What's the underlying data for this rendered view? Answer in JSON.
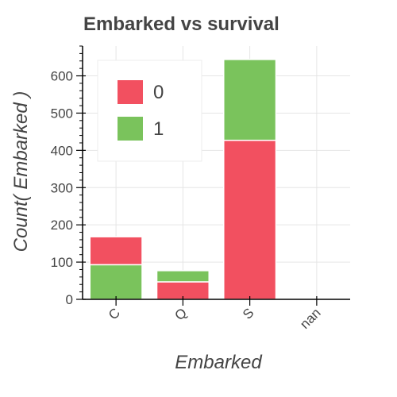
{
  "chart_data": {
    "type": "bar",
    "stacked": true,
    "title": "Embarked vs survival",
    "xlabel": "Embarked",
    "ylabel": "Count( Embarked )",
    "categories": [
      "C",
      "Q",
      "S",
      "nan"
    ],
    "series": [
      {
        "name": "0",
        "values": [
          75,
          47,
          427,
          0
        ],
        "color": "#f25060"
      },
      {
        "name": "1",
        "values": [
          93,
          30,
          217,
          2
        ],
        "color": "#7ac35c"
      }
    ],
    "stack_order": [
      "1",
      "0",
      "0",
      "1"
    ],
    "ylim": [
      0,
      680
    ],
    "yticks": [
      0,
      100,
      200,
      300,
      400,
      500,
      600
    ],
    "grid": true,
    "legend": "top-left"
  }
}
